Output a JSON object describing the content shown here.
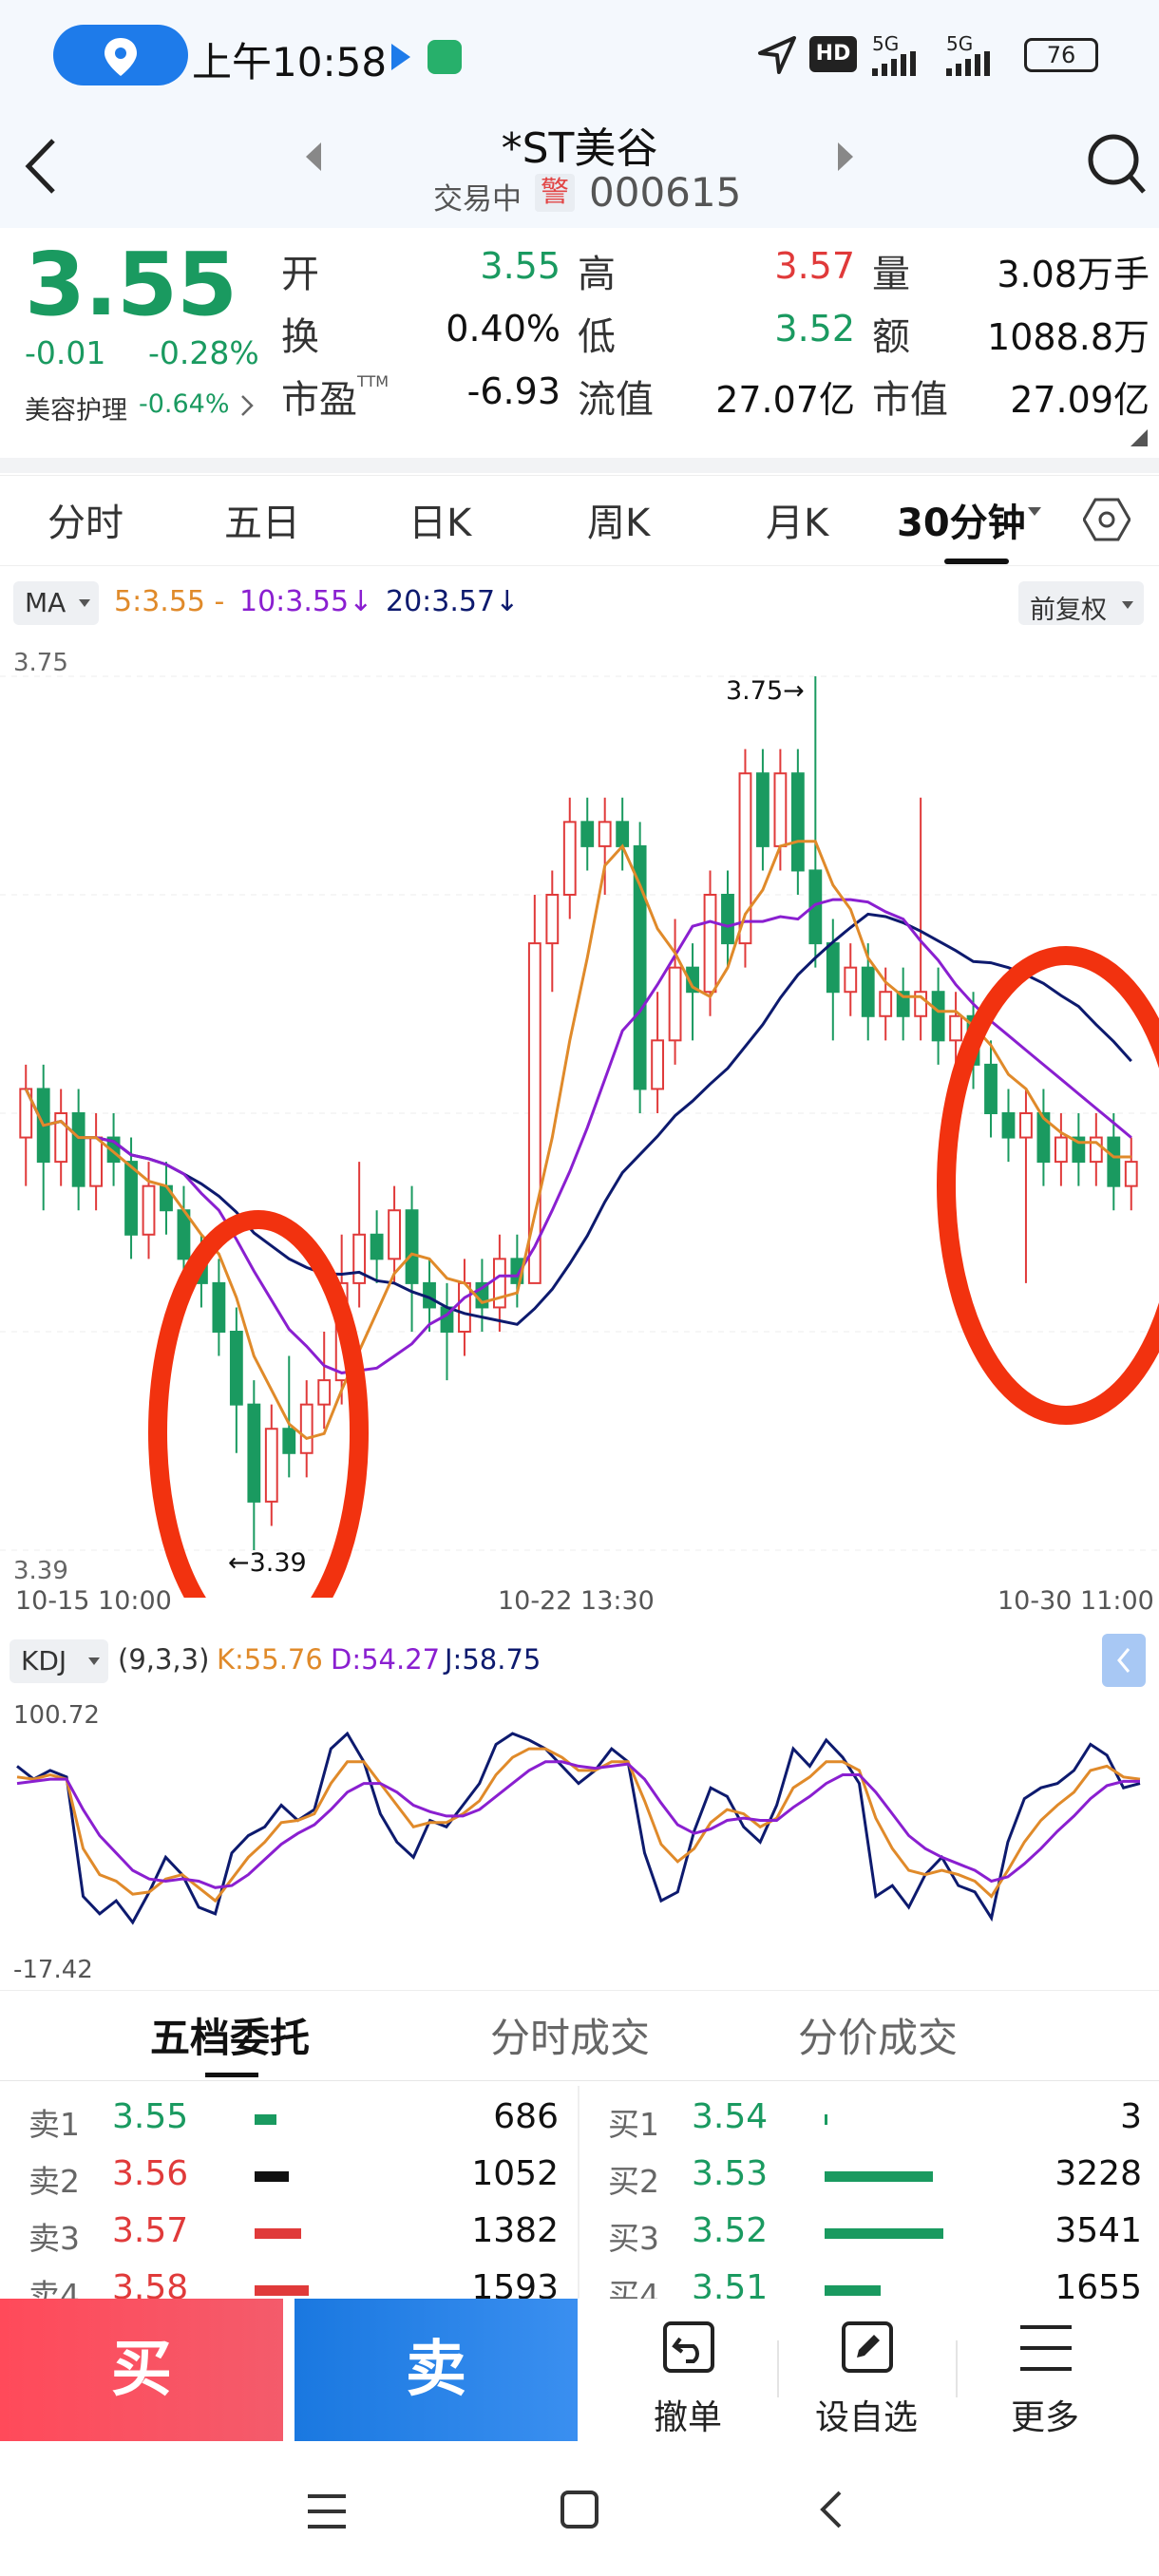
{
  "status_bar": {
    "time": "上午10:58",
    "hd": "HD",
    "sig1": "5G",
    "sig2": "5G",
    "battery": "76"
  },
  "header": {
    "title": "*ST美谷",
    "status": "交易中",
    "flag": "警",
    "code": "000615"
  },
  "quote": {
    "price": "3.55",
    "change": "-0.01",
    "change_pct": "-0.28%",
    "sector": "美容护理",
    "sector_pct": "-0.64%",
    "row1": {
      "open_label": "开",
      "open": "3.55",
      "high_label": "高",
      "high": "3.57",
      "vol_label": "量",
      "vol": "3.08万手"
    },
    "row2": {
      "turn_label": "换",
      "turn": "0.40%",
      "low_label": "低",
      "low": "3.52",
      "amt_label": "额",
      "amt": "1088.8万"
    },
    "row3": {
      "pe_label": "市盈",
      "pe_sup": "TTM",
      "pe": "-6.93",
      "float_label": "流值",
      "float": "27.07亿",
      "mcap_label": "市值",
      "mcap": "27.09亿"
    }
  },
  "tabs": [
    "分时",
    "五日",
    "日K",
    "周K",
    "月K",
    "30分钟"
  ],
  "ma_bar": {
    "selector": "MA",
    "ma5": "5:3.55 -",
    "ma10": "10:3.55↓",
    "ma20": "20:3.57↓",
    "adjust": "前复权"
  },
  "chart_data": {
    "type": "candlestick",
    "period": "30分钟",
    "ylim": [
      3.39,
      3.75
    ],
    "max_label": "3.75→",
    "min_label": "←3.39",
    "x_labels": [
      "10-15 10:00",
      "10-22 13:30",
      "10-30 11:00"
    ],
    "y_labels": [
      "3.75",
      "3.39"
    ],
    "candles": [
      [
        3.56,
        3.58,
        3.54,
        3.59
      ],
      [
        3.58,
        3.55,
        3.53,
        3.59
      ],
      [
        3.55,
        3.57,
        3.54,
        3.58
      ],
      [
        3.57,
        3.54,
        3.53,
        3.58
      ],
      [
        3.54,
        3.56,
        3.53,
        3.57
      ],
      [
        3.56,
        3.55,
        3.54,
        3.57
      ],
      [
        3.55,
        3.52,
        3.51,
        3.56
      ],
      [
        3.52,
        3.54,
        3.51,
        3.55
      ],
      [
        3.54,
        3.53,
        3.52,
        3.55
      ],
      [
        3.53,
        3.51,
        3.5,
        3.54
      ],
      [
        3.51,
        3.5,
        3.49,
        3.52
      ],
      [
        3.5,
        3.48,
        3.47,
        3.51
      ],
      [
        3.48,
        3.45,
        3.43,
        3.49
      ],
      [
        3.45,
        3.41,
        3.39,
        3.46
      ],
      [
        3.41,
        3.44,
        3.4,
        3.45
      ],
      [
        3.44,
        3.43,
        3.42,
        3.47
      ],
      [
        3.43,
        3.45,
        3.42,
        3.46
      ],
      [
        3.45,
        3.46,
        3.44,
        3.48
      ],
      [
        3.46,
        3.5,
        3.45,
        3.52
      ],
      [
        3.5,
        3.52,
        3.49,
        3.55
      ],
      [
        3.52,
        3.51,
        3.5,
        3.53
      ],
      [
        3.51,
        3.53,
        3.5,
        3.54
      ],
      [
        3.53,
        3.5,
        3.48,
        3.54
      ],
      [
        3.5,
        3.49,
        3.48,
        3.51
      ],
      [
        3.49,
        3.48,
        3.46,
        3.5
      ],
      [
        3.48,
        3.5,
        3.47,
        3.51
      ],
      [
        3.5,
        3.49,
        3.48,
        3.51
      ],
      [
        3.49,
        3.51,
        3.48,
        3.52
      ],
      [
        3.51,
        3.5,
        3.49,
        3.52
      ],
      [
        3.5,
        3.64,
        3.5,
        3.66
      ],
      [
        3.64,
        3.66,
        3.62,
        3.67
      ],
      [
        3.66,
        3.69,
        3.65,
        3.7
      ],
      [
        3.69,
        3.68,
        3.67,
        3.7
      ],
      [
        3.68,
        3.69,
        3.66,
        3.7
      ],
      [
        3.69,
        3.68,
        3.67,
        3.7
      ],
      [
        3.68,
        3.58,
        3.57,
        3.69
      ],
      [
        3.58,
        3.6,
        3.57,
        3.62
      ],
      [
        3.6,
        3.63,
        3.59,
        3.65
      ],
      [
        3.63,
        3.62,
        3.6,
        3.64
      ],
      [
        3.62,
        3.66,
        3.61,
        3.67
      ],
      [
        3.66,
        3.64,
        3.63,
        3.67
      ],
      [
        3.64,
        3.71,
        3.63,
        3.72
      ],
      [
        3.71,
        3.68,
        3.67,
        3.72
      ],
      [
        3.68,
        3.71,
        3.67,
        3.72
      ],
      [
        3.71,
        3.67,
        3.66,
        3.72
      ],
      [
        3.67,
        3.64,
        3.63,
        3.75
      ],
      [
        3.64,
        3.62,
        3.6,
        3.65
      ],
      [
        3.62,
        3.63,
        3.61,
        3.64
      ],
      [
        3.63,
        3.61,
        3.6,
        3.64
      ],
      [
        3.61,
        3.62,
        3.6,
        3.63
      ],
      [
        3.62,
        3.61,
        3.6,
        3.63
      ],
      [
        3.61,
        3.62,
        3.6,
        3.7
      ],
      [
        3.62,
        3.6,
        3.59,
        3.63
      ],
      [
        3.6,
        3.61,
        3.59,
        3.62
      ],
      [
        3.61,
        3.59,
        3.58,
        3.62
      ],
      [
        3.59,
        3.57,
        3.56,
        3.6
      ],
      [
        3.57,
        3.56,
        3.55,
        3.58
      ],
      [
        3.56,
        3.57,
        3.5,
        3.58
      ],
      [
        3.57,
        3.55,
        3.54,
        3.58
      ],
      [
        3.55,
        3.56,
        3.54,
        3.57
      ],
      [
        3.56,
        3.55,
        3.54,
        3.57
      ],
      [
        3.55,
        3.56,
        3.54,
        3.57
      ],
      [
        3.56,
        3.54,
        3.53,
        3.57
      ],
      [
        3.54,
        3.55,
        3.53,
        3.56
      ]
    ]
  },
  "kdj": {
    "selector": "KDJ",
    "params": "(9,3,3)",
    "k": "K:55.76",
    "d": "D:54.27",
    "j": "J:58.75",
    "max": "100.72",
    "min": "-17.42",
    "j_series": [
      80,
      74,
      78,
      75,
      20,
      12,
      18,
      8,
      22,
      38,
      30,
      15,
      12,
      40,
      48,
      52,
      62,
      55,
      60,
      88,
      95,
      82,
      58,
      45,
      38,
      55,
      52,
      62,
      72,
      90,
      95,
      92,
      88,
      80,
      72,
      78,
      88,
      82,
      40,
      18,
      22,
      50,
      70,
      66,
      52,
      45,
      62,
      88,
      80,
      92,
      84,
      72,
      20,
      25,
      15,
      30,
      38,
      25,
      22,
      10,
      45,
      65,
      70,
      72,
      78,
      90,
      85,
      70,
      72
    ],
    "k_series": [
      75,
      74,
      76,
      74,
      42,
      30,
      27,
      21,
      22,
      28,
      30,
      24,
      18,
      28,
      38,
      45,
      54,
      55,
      58,
      72,
      82,
      82,
      72,
      62,
      52,
      54,
      54,
      58,
      64,
      76,
      84,
      88,
      88,
      84,
      78,
      78,
      82,
      82,
      64,
      44,
      36,
      42,
      54,
      60,
      58,
      52,
      56,
      70,
      75,
      82,
      82,
      78,
      56,
      42,
      32,
      30,
      32,
      30,
      27,
      20,
      32,
      45,
      55,
      62,
      68,
      78,
      80,
      75,
      74
    ],
    "d_series": [
      72,
      73,
      74,
      74,
      60,
      48,
      40,
      32,
      28,
      27,
      28,
      27,
      24,
      25,
      30,
      37,
      44,
      49,
      53,
      60,
      68,
      72,
      72,
      68,
      62,
      59,
      57,
      57,
      60,
      66,
      72,
      78,
      82,
      82,
      80,
      79,
      80,
      81,
      74,
      63,
      53,
      49,
      51,
      55,
      56,
      55,
      55,
      61,
      66,
      72,
      76,
      76,
      68,
      58,
      48,
      42,
      38,
      35,
      32,
      27,
      29,
      35,
      42,
      50,
      57,
      65,
      71,
      73,
      73
    ]
  },
  "orderbook": {
    "tabs": [
      "五档委托",
      "分时成交",
      "分价成交"
    ],
    "asks": [
      {
        "label": "卖1",
        "price": "3.55",
        "vol": "686",
        "bar_pct": 0.12,
        "color": "#1a9a60"
      },
      {
        "label": "卖2",
        "price": "3.56",
        "vol": "1052",
        "bar_pct": 0.19,
        "color": "#111111"
      },
      {
        "label": "卖3",
        "price": "3.57",
        "vol": "1382",
        "bar_pct": 0.26,
        "color": "#e03a3a"
      },
      {
        "label": "卖4",
        "price": "3.58",
        "vol": "1593",
        "bar_pct": 0.3,
        "color": "#e03a3a"
      }
    ],
    "bids": [
      {
        "label": "买1",
        "price": "3.54",
        "vol": "3",
        "bar_pct": 0.01,
        "color": "#1a9a60"
      },
      {
        "label": "买2",
        "price": "3.53",
        "vol": "3228",
        "bar_pct": 0.6,
        "color": "#1a9a60"
      },
      {
        "label": "买3",
        "price": "3.52",
        "vol": "3541",
        "bar_pct": 0.66,
        "color": "#1a9a60"
      },
      {
        "label": "买4",
        "price": "3.51",
        "vol": "1655",
        "bar_pct": 0.31,
        "color": "#1a9a60"
      }
    ]
  },
  "actions": {
    "buy": "买",
    "sell": "卖",
    "cancel": "撤单",
    "watch": "设自选",
    "more": "更多"
  },
  "colors": {
    "up": "#e03a3a",
    "down": "#1a9a60",
    "ma5": "#e08a2a",
    "ma10": "#8a1fd0",
    "ma20": "#0d1a6e",
    "circle": "#f2320f"
  }
}
